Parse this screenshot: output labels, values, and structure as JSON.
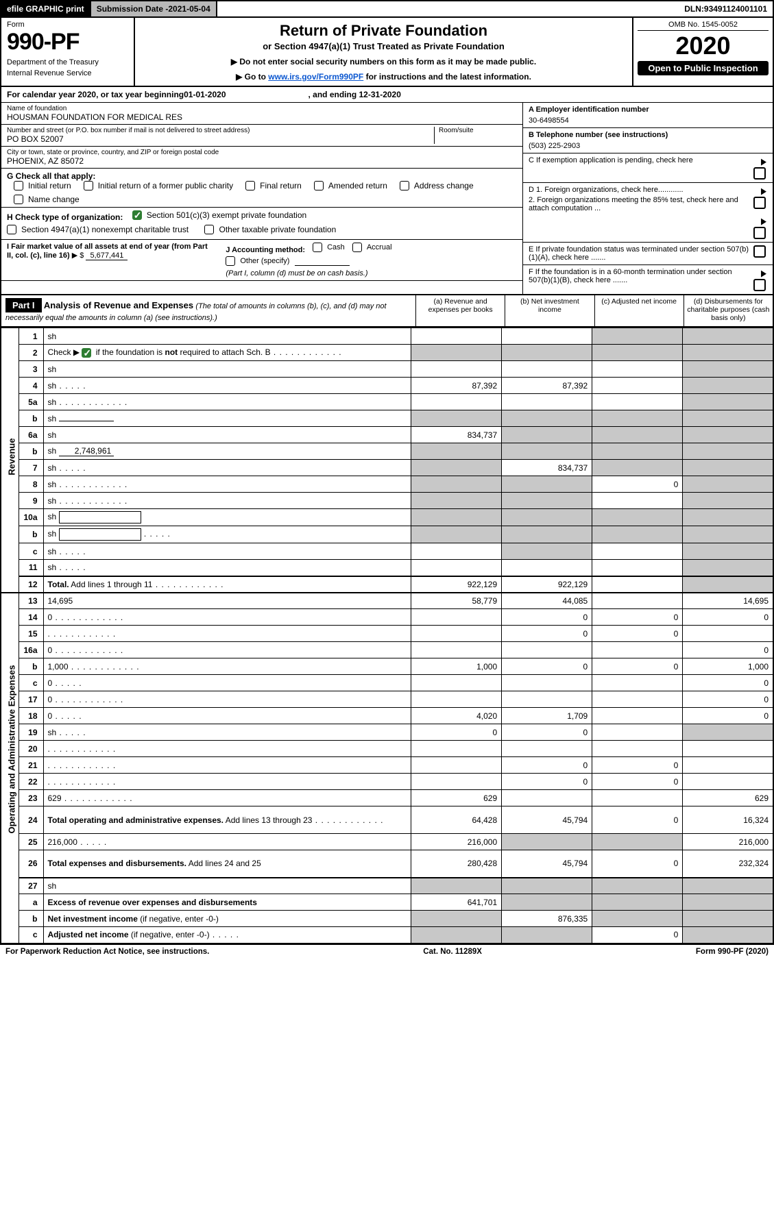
{
  "topbar": {
    "efile": "efile GRAPHIC print",
    "submission_label": "Submission Date - ",
    "submission_date": "2021-05-04",
    "dln_label": "DLN: ",
    "dln": "93491124001101"
  },
  "form_header": {
    "form_word": "Form",
    "form_no": "990-PF",
    "dept1": "Department of the Treasury",
    "dept2": "Internal Revenue Service",
    "title": "Return of Private Foundation",
    "subtitle": "or Section 4947(a)(1) Trust Treated as Private Foundation",
    "instr1": "▶ Do not enter social security numbers on this form as it may be made public.",
    "instr2_pre": "▶ Go to ",
    "instr2_link": "www.irs.gov/Form990PF",
    "instr2_post": " for instructions and the latest information.",
    "omb": "OMB No. 1545-0052",
    "year": "2020",
    "open": "Open to Public Inspection"
  },
  "calendar": {
    "pre": "For calendar year 2020, or tax year beginning ",
    "begin": "01-01-2020",
    "mid": ", and ending ",
    "end": "12-31-2020"
  },
  "entity": {
    "name_label": "Name of foundation",
    "name": "HOUSMAN FOUNDATION FOR MEDICAL RES",
    "addr_label": "Number and street (or P.O. box number if mail is not delivered to street address)",
    "room_label": "Room/suite",
    "addr": "PO BOX 52007",
    "city_label": "City or town, state or province, country, and ZIP or foreign postal code",
    "city": "PHOENIX, AZ  85072",
    "ein_label": "A Employer identification number",
    "ein": "30-6498554",
    "tel_label": "B Telephone number (see instructions)",
    "tel": "(503) 225-2903",
    "c_label": "C If exemption application is pending, check here",
    "d1": "D 1. Foreign organizations, check here............",
    "d2": "2. Foreign organizations meeting the 85% test, check here and attach computation ...",
    "e": "E  If private foundation status was terminated under section 507(b)(1)(A), check here .......",
    "f": "F  If the foundation is in a 60-month termination under section 507(b)(1)(B), check here ......."
  },
  "g": {
    "label": "G Check all that apply:",
    "opts": [
      "Initial return",
      "Final return",
      "Address change",
      "Initial return of a former public charity",
      "Amended return",
      "Name change"
    ]
  },
  "h": {
    "label": "H Check type of organization:",
    "opt1": "Section 501(c)(3) exempt private foundation",
    "opt2": "Section 4947(a)(1) nonexempt charitable trust",
    "opt3": "Other taxable private foundation"
  },
  "i": {
    "label": "I Fair market value of all assets at end of year (from Part II, col. (c), line 16)",
    "value_prefix": "▶ $",
    "value": "5,677,441"
  },
  "j": {
    "label": "J Accounting method:",
    "opts": [
      "Cash",
      "Accrual"
    ],
    "other": "Other (specify)",
    "note": "(Part I, column (d) must be on cash basis.)"
  },
  "part1": {
    "label": "Part I",
    "title": "Analysis of Revenue and Expenses",
    "note": " (The total of amounts in columns (b), (c), and (d) may not necessarily equal the amounts in column (a) (see instructions).)",
    "col_a": "(a)  Revenue and expenses per books",
    "col_b": "(b)  Net investment income",
    "col_c": "(c)  Adjusted net income",
    "col_d": "(d)  Disbursements for charitable purposes (cash basis only)"
  },
  "section_labels": {
    "revenue": "Revenue",
    "opex": "Operating and Administrative Expenses"
  },
  "rows": [
    {
      "n": "1",
      "d": "sh",
      "a": "",
      "b": "",
      "c": "sh"
    },
    {
      "n": "2",
      "d_html": "Check ▶ [CHK] if the foundation is <b>not</b> required to attach Sch. B",
      "dots": true,
      "a": "sh",
      "b": "sh",
      "c": "sh",
      "d": "sh"
    },
    {
      "n": "3",
      "d": "sh",
      "a": "",
      "b": "",
      "c": ""
    },
    {
      "n": "4",
      "d": "sh",
      "dots": "s",
      "a": "87,392",
      "b": "87,392",
      "c": ""
    },
    {
      "n": "5a",
      "d": "sh",
      "dots": true,
      "a": "",
      "b": "",
      "c": ""
    },
    {
      "n": "b",
      "d": "sh",
      "sub": "",
      "a": "sh",
      "b": "sh",
      "c": "sh"
    },
    {
      "n": "6a",
      "d": "sh",
      "a": "834,737",
      "b": "sh",
      "c": "sh"
    },
    {
      "n": "b",
      "d": "sh",
      "sub": "2,748,961",
      "a": "sh",
      "b": "sh",
      "c": "sh"
    },
    {
      "n": "7",
      "d": "sh",
      "dots": "s",
      "a": "sh",
      "b": "834,737",
      "c": "sh"
    },
    {
      "n": "8",
      "d": "sh",
      "dots": true,
      "a": "sh",
      "b": "sh",
      "c": "0"
    },
    {
      "n": "9",
      "d": "sh",
      "dots": true,
      "a": "sh",
      "b": "sh",
      "c": ""
    },
    {
      "n": "10a",
      "d": "sh",
      "box": true,
      "a": "sh",
      "b": "sh",
      "c": "sh"
    },
    {
      "n": "b",
      "d": "sh",
      "dots": "s",
      "box": true,
      "a": "sh",
      "b": "sh",
      "c": "sh"
    },
    {
      "n": "c",
      "d": "sh",
      "dots": "s",
      "a": "",
      "b": "sh",
      "c": ""
    },
    {
      "n": "11",
      "d": "sh",
      "dots": "s",
      "a": "",
      "b": "",
      "c": ""
    },
    {
      "n": "12",
      "d_html": "<b>Total.</b> Add lines 1 through 11",
      "dots": true,
      "a": "922,129",
      "b": "922,129",
      "c": "",
      "d": "sh",
      "sep": true
    },
    {
      "n": "13",
      "d": "14,695",
      "a": "58,779",
      "b": "44,085",
      "c": "",
      "sep": true
    },
    {
      "n": "14",
      "d": "0",
      "dots": true,
      "a": "",
      "b": "0",
      "c": "0"
    },
    {
      "n": "15",
      "d": "",
      "dots": true,
      "a": "",
      "b": "0",
      "c": "0"
    },
    {
      "n": "16a",
      "d": "0",
      "dots": true,
      "a": "",
      "b": "",
      "c": ""
    },
    {
      "n": "b",
      "d": "1,000",
      "dots": true,
      "a": "1,000",
      "b": "0",
      "c": "0"
    },
    {
      "n": "c",
      "d": "0",
      "dots": "s",
      "a": "",
      "b": "",
      "c": ""
    },
    {
      "n": "17",
      "d": "0",
      "dots": true,
      "a": "",
      "b": "",
      "c": ""
    },
    {
      "n": "18",
      "d": "0",
      "dots": "s",
      "a": "4,020",
      "b": "1,709",
      "c": ""
    },
    {
      "n": "19",
      "d": "sh",
      "dots": "s",
      "a": "0",
      "b": "0",
      "c": ""
    },
    {
      "n": "20",
      "d": "",
      "dots": true,
      "a": "",
      "b": "",
      "c": ""
    },
    {
      "n": "21",
      "d": "",
      "dots": true,
      "a": "",
      "b": "0",
      "c": "0"
    },
    {
      "n": "22",
      "d": "",
      "dots": true,
      "a": "",
      "b": "0",
      "c": "0"
    },
    {
      "n": "23",
      "d": "629",
      "dots": true,
      "a": "629",
      "b": "",
      "c": ""
    },
    {
      "n": "24",
      "d_html": "<b>Total operating and administrative expenses.</b> Add lines 13 through 23",
      "dots": true,
      "a": "64,428",
      "b": "45,794",
      "c": "0",
      "d": "16,324",
      "tall": true
    },
    {
      "n": "25",
      "d": "216,000",
      "dots": "s",
      "a": "216,000",
      "b": "sh",
      "c": "sh"
    },
    {
      "n": "26",
      "d_html": "<b>Total expenses and disbursements.</b> Add lines 24 and 25",
      "a": "280,428",
      "b": "45,794",
      "c": "0",
      "d": "232,324",
      "tall": true,
      "sep_after": true
    },
    {
      "n": "27",
      "d": "sh",
      "a": "sh",
      "b": "sh",
      "c": "sh",
      "sep": true
    },
    {
      "n": "a",
      "d_html": "<b>Excess of revenue over expenses and disbursements</b>",
      "a": "641,701",
      "b": "sh",
      "c": "sh",
      "d": "sh"
    },
    {
      "n": "b",
      "d_html": "<b>Net investment income</b> (if negative, enter -0-)",
      "a": "sh",
      "b": "876,335",
      "c": "sh",
      "d": "sh"
    },
    {
      "n": "c",
      "d_html": "<b>Adjusted net income</b> (if negative, enter -0-)",
      "dots": "s",
      "a": "sh",
      "b": "sh",
      "c": "0",
      "d": "sh"
    }
  ],
  "footer": {
    "left": "For Paperwork Reduction Act Notice, see instructions.",
    "mid": "Cat. No. 11289X",
    "right": "Form 990-PF (2020)"
  },
  "colors": {
    "shade": "#c8c8c8",
    "check_green": "#2e7d32",
    "link": "#0b57d0"
  }
}
